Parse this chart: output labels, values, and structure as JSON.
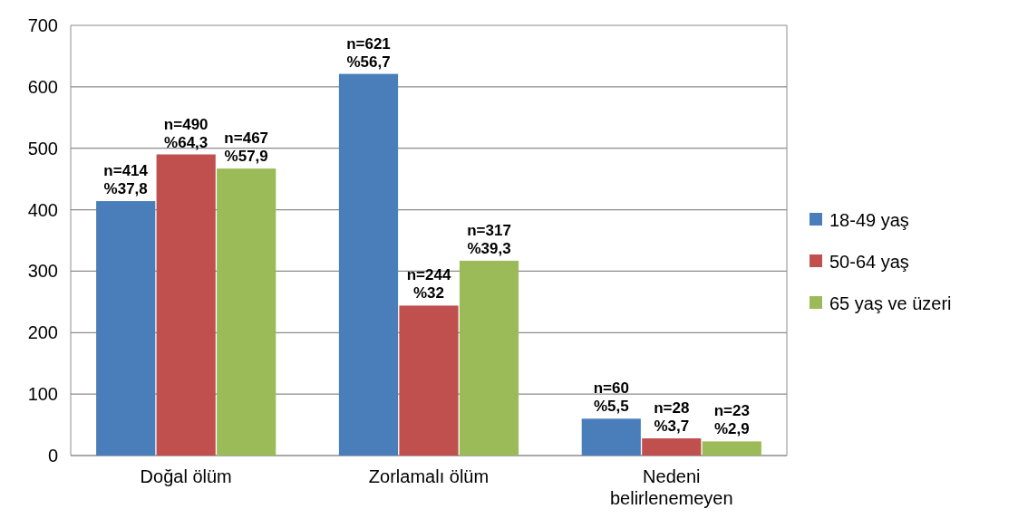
{
  "chart_data": {
    "type": "bar",
    "categories": [
      "Doğal ölüm",
      "Zorlamalı ölüm",
      "Nedeni belirlenemeyen"
    ],
    "series": [
      {
        "name": "18-49 yaş",
        "color": "#4a7ebb",
        "values": [
          414,
          621,
          60
        ],
        "value_labels": [
          "n=414\n%37,8",
          "n=621\n%56,7",
          "n=60\n%5,5"
        ]
      },
      {
        "name": "50-64 yaş",
        "color": "#c0504d",
        "values": [
          490,
          244,
          28
        ],
        "value_labels": [
          "n=490\n%64,3",
          "n=244\n%32",
          "n=28\n%3,7"
        ]
      },
      {
        "name": "65 yaş ve üzeri",
        "color": "#9bbb59",
        "values": [
          467,
          317,
          23
        ],
        "value_labels": [
          "n=467\n%57,9",
          "n=317\n%39,3",
          "n=23\n%2,9"
        ]
      }
    ],
    "ylim": [
      0,
      700
    ],
    "yticks": [
      0,
      100,
      200,
      300,
      400,
      500,
      600,
      700
    ],
    "grid": "y",
    "legend": "right"
  }
}
